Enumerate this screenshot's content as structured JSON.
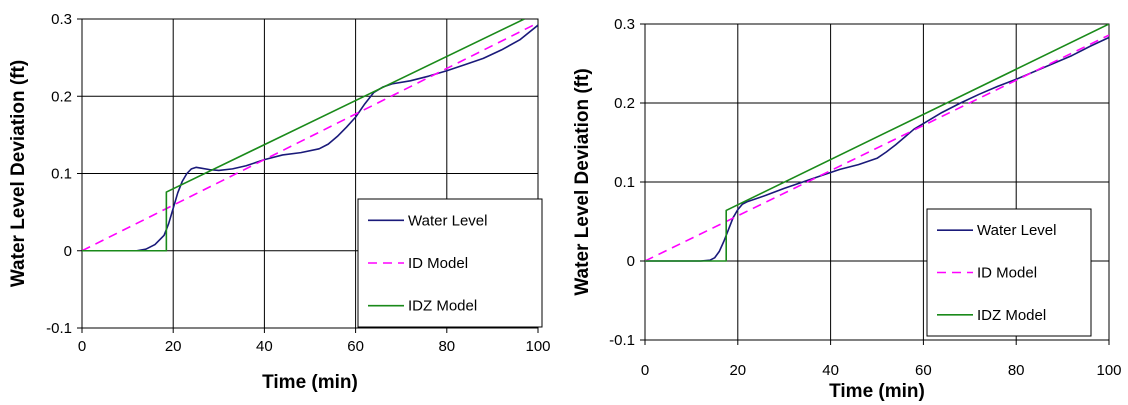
{
  "chart_data": [
    {
      "type": "line",
      "xlabel": "Time (min)",
      "ylabel": "Water Level Deviation (ft)",
      "xlim": [
        0,
        100
      ],
      "ylim": [
        -0.1,
        0.3
      ],
      "xticks": [
        0,
        20,
        40,
        60,
        80,
        100
      ],
      "yticks": [
        -0.1,
        0,
        0.1,
        0.2,
        0.3
      ],
      "ytick_labels": [
        "-0.1",
        "0",
        "0.1",
        "0.2",
        "0.3"
      ],
      "xtick_labels": [
        "0",
        "20",
        "40",
        "60",
        "80",
        "100"
      ],
      "grid": true,
      "legend_position": "bottom-right",
      "series": [
        {
          "name": "Water Level",
          "color": "#1a1a7a",
          "dash": "solid",
          "x": [
            0,
            12,
            14,
            16,
            18,
            19,
            20,
            21,
            22,
            23,
            24,
            25,
            26,
            28,
            30,
            33,
            36,
            40,
            44,
            48,
            52,
            54,
            56,
            58,
            60,
            62,
            64,
            66,
            68,
            72,
            76,
            80,
            84,
            88,
            92,
            96,
            100
          ],
          "y": [
            0,
            0,
            0.002,
            0.008,
            0.02,
            0.035,
            0.055,
            0.075,
            0.09,
            0.1,
            0.106,
            0.108,
            0.107,
            0.105,
            0.104,
            0.106,
            0.11,
            0.118,
            0.124,
            0.127,
            0.132,
            0.138,
            0.148,
            0.16,
            0.173,
            0.19,
            0.205,
            0.212,
            0.216,
            0.22,
            0.226,
            0.233,
            0.241,
            0.249,
            0.26,
            0.273,
            0.292
          ]
        },
        {
          "name": "ID Model",
          "color": "#ff00ff",
          "dash": "dashed",
          "x": [
            0,
            100
          ],
          "y": [
            0,
            0.295
          ]
        },
        {
          "name": "IDZ Model",
          "color": "#1a8a1a",
          "dash": "solid",
          "x": [
            0,
            18.5,
            18.5,
            97
          ],
          "y": [
            0,
            0,
            0.076,
            0.3
          ]
        }
      ]
    },
    {
      "type": "line",
      "xlabel": "Time (min)",
      "ylabel": "Water Level Deviation (ft)",
      "xlim": [
        0,
        100
      ],
      "ylim": [
        -0.1,
        0.3
      ],
      "xticks": [
        0,
        20,
        40,
        60,
        80,
        100
      ],
      "yticks": [
        -0.1,
        0,
        0.1,
        0.2,
        0.3
      ],
      "ytick_labels": [
        "-0.1",
        "0",
        "0.1",
        "0.2",
        "0.3"
      ],
      "xtick_labels": [
        "0",
        "20",
        "40",
        "60",
        "80",
        "100"
      ],
      "grid": true,
      "legend_position": "bottom-right",
      "series": [
        {
          "name": "Water Level",
          "color": "#1a1a7a",
          "dash": "solid",
          "x": [
            0,
            12,
            14,
            15,
            16,
            17,
            18,
            19,
            20,
            21,
            22,
            24,
            26,
            30,
            34,
            38,
            42,
            46,
            50,
            52,
            54,
            56,
            58,
            60,
            64,
            68,
            72,
            76,
            80,
            84,
            88,
            92,
            96,
            100
          ],
          "y": [
            0,
            0,
            0.001,
            0.004,
            0.012,
            0.025,
            0.04,
            0.055,
            0.065,
            0.072,
            0.075,
            0.079,
            0.083,
            0.092,
            0.1,
            0.108,
            0.116,
            0.122,
            0.13,
            0.138,
            0.147,
            0.157,
            0.167,
            0.174,
            0.188,
            0.2,
            0.211,
            0.221,
            0.23,
            0.24,
            0.25,
            0.26,
            0.272,
            0.283
          ]
        },
        {
          "name": "ID Model",
          "color": "#ff00ff",
          "dash": "dashed",
          "x": [
            0,
            100
          ],
          "y": [
            0,
            0.286
          ]
        },
        {
          "name": "IDZ Model",
          "color": "#1a8a1a",
          "dash": "solid",
          "x": [
            0,
            17.5,
            17.5,
            100
          ],
          "y": [
            0,
            0,
            0.064,
            0.3
          ]
        }
      ]
    }
  ]
}
